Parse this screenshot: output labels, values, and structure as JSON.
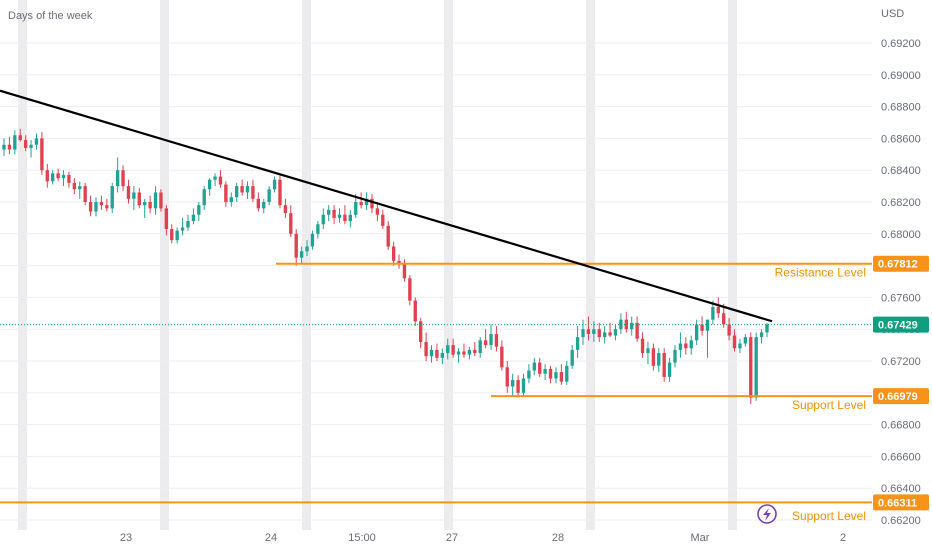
{
  "header": {
    "label": "Days of the week"
  },
  "currency": "USD",
  "colors": {
    "up": "#22a294",
    "down": "#e1404f",
    "trendline": "#000000",
    "level": "#f7931a",
    "grid": "#eceef2",
    "session_band": "#ececef",
    "current_price_badge": "#0d9f7e",
    "level_badge": "#f7931a",
    "ai_icon": "#7b3fbf"
  },
  "icons": {
    "bolt": "lightning-bolt-icon"
  },
  "chart_data": {
    "type": "candlestick",
    "title": "",
    "xlabel": "",
    "ylabel": "",
    "currency": "USD",
    "ylim": [
      0.662,
      0.6935
    ],
    "y_ticks": [
      "0.69200",
      "0.69000",
      "0.68800",
      "0.68600",
      "0.68400",
      "0.68200",
      "0.68000",
      "0.67800",
      "0.67600",
      "0.67400",
      "0.67200",
      "0.67000",
      "0.66800",
      "0.66600",
      "0.66400",
      "0.66200"
    ],
    "x_ticks": [
      "23",
      "24",
      "15:00",
      "27",
      "28",
      "Mar",
      "2"
    ],
    "grid": true,
    "current_price": "0.67429",
    "levels": [
      {
        "label": "Resistance Level",
        "value": "0.67812"
      },
      {
        "label": "Support Level",
        "value": "0.66979"
      },
      {
        "label": "Support Level",
        "value": "0.66311"
      }
    ],
    "trendline": {
      "from": 0.689,
      "to": 0.6745
    },
    "candles": [
      [
        0.6853,
        0.686,
        0.6849,
        0.6856
      ],
      [
        0.6856,
        0.6861,
        0.685,
        0.6853
      ],
      [
        0.6853,
        0.6865,
        0.685,
        0.6862
      ],
      [
        0.6862,
        0.6866,
        0.6858,
        0.6859
      ],
      [
        0.6859,
        0.6862,
        0.6852,
        0.6854
      ],
      [
        0.6854,
        0.6859,
        0.6848,
        0.6856
      ],
      [
        0.6856,
        0.6863,
        0.6853,
        0.686
      ],
      [
        0.686,
        0.6864,
        0.6837,
        0.684
      ],
      [
        0.684,
        0.6844,
        0.6829,
        0.6833
      ],
      [
        0.6833,
        0.684,
        0.6831,
        0.6838
      ],
      [
        0.6838,
        0.6841,
        0.6833,
        0.6835
      ],
      [
        0.6835,
        0.684,
        0.683,
        0.6837
      ],
      [
        0.6837,
        0.6839,
        0.6829,
        0.6832
      ],
      [
        0.6832,
        0.6835,
        0.6825,
        0.6828
      ],
      [
        0.6828,
        0.6833,
        0.6822,
        0.683
      ],
      [
        0.683,
        0.6832,
        0.6818,
        0.682
      ],
      [
        0.682,
        0.6824,
        0.6811,
        0.6814
      ],
      [
        0.6814,
        0.6823,
        0.6811,
        0.682
      ],
      [
        0.682,
        0.6824,
        0.6815,
        0.6818
      ],
      [
        0.6818,
        0.6822,
        0.6814,
        0.6816
      ],
      [
        0.6816,
        0.6832,
        0.6813,
        0.683
      ],
      [
        0.683,
        0.6848,
        0.6826,
        0.684
      ],
      [
        0.684,
        0.6843,
        0.6827,
        0.683
      ],
      [
        0.683,
        0.6834,
        0.6819,
        0.6822
      ],
      [
        0.6822,
        0.683,
        0.6815,
        0.6826
      ],
      [
        0.6826,
        0.6829,
        0.6816,
        0.6818
      ],
      [
        0.6818,
        0.6822,
        0.681,
        0.682
      ],
      [
        0.682,
        0.6824,
        0.6813,
        0.6816
      ],
      [
        0.6816,
        0.683,
        0.6812,
        0.6826
      ],
      [
        0.6826,
        0.6828,
        0.6814,
        0.6816
      ],
      [
        0.6816,
        0.6818,
        0.6799,
        0.6803
      ],
      [
        0.6803,
        0.6806,
        0.6794,
        0.6796
      ],
      [
        0.6796,
        0.6804,
        0.6794,
        0.6802
      ],
      [
        0.6802,
        0.681,
        0.6799,
        0.6804
      ],
      [
        0.6804,
        0.6812,
        0.6802,
        0.6808
      ],
      [
        0.6808,
        0.6816,
        0.6806,
        0.6812
      ],
      [
        0.6812,
        0.682,
        0.6808,
        0.6818
      ],
      [
        0.6818,
        0.683,
        0.6815,
        0.6828
      ],
      [
        0.6828,
        0.6835,
        0.6824,
        0.6834
      ],
      [
        0.6834,
        0.6838,
        0.683,
        0.6836
      ],
      [
        0.6836,
        0.684,
        0.6829,
        0.6831
      ],
      [
        0.6831,
        0.6833,
        0.6817,
        0.682
      ],
      [
        0.682,
        0.6826,
        0.6817,
        0.6823
      ],
      [
        0.6823,
        0.6832,
        0.682,
        0.683
      ],
      [
        0.683,
        0.6834,
        0.6824,
        0.6826
      ],
      [
        0.6826,
        0.6833,
        0.6822,
        0.683
      ],
      [
        0.683,
        0.6834,
        0.682,
        0.6822
      ],
      [
        0.6822,
        0.6826,
        0.6814,
        0.6816
      ],
      [
        0.6816,
        0.6822,
        0.6813,
        0.682
      ],
      [
        0.682,
        0.683,
        0.6818,
        0.6828
      ],
      [
        0.6828,
        0.6836,
        0.6826,
        0.6834
      ],
      [
        0.6834,
        0.6838,
        0.6816,
        0.6818
      ],
      [
        0.6818,
        0.6822,
        0.681,
        0.6813
      ],
      [
        0.6813,
        0.6818,
        0.6798,
        0.68
      ],
      [
        0.68,
        0.6803,
        0.678,
        0.6785
      ],
      [
        0.6785,
        0.6792,
        0.6781,
        0.6789
      ],
      [
        0.6789,
        0.6796,
        0.6786,
        0.6792
      ],
      [
        0.6792,
        0.6802,
        0.679,
        0.68
      ],
      [
        0.68,
        0.6808,
        0.6797,
        0.6806
      ],
      [
        0.6806,
        0.6816,
        0.6803,
        0.6812
      ],
      [
        0.6812,
        0.6818,
        0.6808,
        0.6815
      ],
      [
        0.6815,
        0.6818,
        0.6806,
        0.681
      ],
      [
        0.681,
        0.6816,
        0.6807,
        0.6812
      ],
      [
        0.6812,
        0.6818,
        0.6806,
        0.6808
      ],
      [
        0.6808,
        0.6815,
        0.6804,
        0.6812
      ],
      [
        0.6812,
        0.6825,
        0.681,
        0.682
      ],
      [
        0.682,
        0.6826,
        0.6816,
        0.6818
      ],
      [
        0.6818,
        0.6826,
        0.6815,
        0.6822
      ],
      [
        0.6822,
        0.6825,
        0.6813,
        0.6816
      ],
      [
        0.6816,
        0.682,
        0.6808,
        0.6812
      ],
      [
        0.6812,
        0.6815,
        0.6803,
        0.6805
      ],
      [
        0.6805,
        0.6808,
        0.679,
        0.6792
      ],
      [
        0.6792,
        0.6795,
        0.678,
        0.6783
      ],
      [
        0.6783,
        0.6787,
        0.6778,
        0.6781
      ],
      [
        0.6781,
        0.6784,
        0.677,
        0.6772
      ],
      [
        0.6772,
        0.6774,
        0.6755,
        0.6758
      ],
      [
        0.6758,
        0.676,
        0.6742,
        0.6745
      ],
      [
        0.6745,
        0.6747,
        0.6728,
        0.6732
      ],
      [
        0.6732,
        0.6738,
        0.672,
        0.6723
      ],
      [
        0.6723,
        0.673,
        0.6719,
        0.6727
      ],
      [
        0.6727,
        0.6731,
        0.672,
        0.6722
      ],
      [
        0.6722,
        0.6728,
        0.6718,
        0.6725
      ],
      [
        0.6725,
        0.6734,
        0.6721,
        0.673
      ],
      [
        0.673,
        0.6734,
        0.6722,
        0.6724
      ],
      [
        0.6724,
        0.6728,
        0.6719,
        0.6726
      ],
      [
        0.6726,
        0.6731,
        0.6722,
        0.6724
      ],
      [
        0.6724,
        0.6729,
        0.6721,
        0.6727
      ],
      [
        0.6727,
        0.6732,
        0.6723,
        0.6725
      ],
      [
        0.6725,
        0.6735,
        0.6722,
        0.6733
      ],
      [
        0.6733,
        0.674,
        0.6728,
        0.673
      ],
      [
        0.673,
        0.6743,
        0.6727,
        0.6737
      ],
      [
        0.6737,
        0.6742,
        0.6726,
        0.6729
      ],
      [
        0.6729,
        0.6733,
        0.6714,
        0.6716
      ],
      [
        0.6716,
        0.672,
        0.67,
        0.6704
      ],
      [
        0.6704,
        0.6712,
        0.6698,
        0.6708
      ],
      [
        0.6708,
        0.6711,
        0.6697,
        0.67
      ],
      [
        0.67,
        0.6712,
        0.6698,
        0.6709
      ],
      [
        0.6709,
        0.6718,
        0.6706,
        0.6714
      ],
      [
        0.6714,
        0.6722,
        0.6711,
        0.6719
      ],
      [
        0.6719,
        0.6722,
        0.671,
        0.6712
      ],
      [
        0.6712,
        0.6718,
        0.6708,
        0.6715
      ],
      [
        0.6715,
        0.6717,
        0.6706,
        0.6709
      ],
      [
        0.6709,
        0.6716,
        0.6706,
        0.6713
      ],
      [
        0.6713,
        0.6718,
        0.6705,
        0.6707
      ],
      [
        0.6707,
        0.672,
        0.6705,
        0.6717
      ],
      [
        0.6717,
        0.673,
        0.6715,
        0.6727
      ],
      [
        0.6727,
        0.6742,
        0.6722,
        0.6735
      ],
      [
        0.6735,
        0.6746,
        0.673,
        0.674
      ],
      [
        0.674,
        0.6748,
        0.6733,
        0.6737
      ],
      [
        0.6737,
        0.6745,
        0.6732,
        0.674
      ],
      [
        0.674,
        0.6744,
        0.6732,
        0.6735
      ],
      [
        0.6735,
        0.6742,
        0.6731,
        0.6738
      ],
      [
        0.6738,
        0.6744,
        0.6735,
        0.6736
      ],
      [
        0.6736,
        0.6743,
        0.6733,
        0.674
      ],
      [
        0.674,
        0.675,
        0.6737,
        0.6746
      ],
      [
        0.6746,
        0.6751,
        0.6738,
        0.674
      ],
      [
        0.674,
        0.6748,
        0.6736,
        0.6744
      ],
      [
        0.6744,
        0.6748,
        0.6732,
        0.6734
      ],
      [
        0.6734,
        0.6738,
        0.6722,
        0.6725
      ],
      [
        0.6725,
        0.6732,
        0.6718,
        0.6728
      ],
      [
        0.6728,
        0.6731,
        0.6714,
        0.6717
      ],
      [
        0.6717,
        0.6728,
        0.6713,
        0.6725
      ],
      [
        0.6725,
        0.6728,
        0.6707,
        0.671
      ],
      [
        0.671,
        0.6722,
        0.6707,
        0.6719
      ],
      [
        0.6719,
        0.673,
        0.6716,
        0.6727
      ],
      [
        0.6727,
        0.6738,
        0.6722,
        0.6731
      ],
      [
        0.6731,
        0.6735,
        0.6724,
        0.6728
      ],
      [
        0.6728,
        0.6736,
        0.6724,
        0.6733
      ],
      [
        0.6733,
        0.6746,
        0.673,
        0.6743
      ],
      [
        0.6743,
        0.6748,
        0.6736,
        0.6739
      ],
      [
        0.6739,
        0.6746,
        0.6722,
        0.6746
      ],
      [
        0.6746,
        0.6758,
        0.6743,
        0.6754
      ],
      [
        0.6754,
        0.676,
        0.6747,
        0.675
      ],
      [
        0.675,
        0.6756,
        0.6741,
        0.6743
      ],
      [
        0.6743,
        0.6747,
        0.6733,
        0.6736
      ],
      [
        0.6736,
        0.674,
        0.6726,
        0.6728
      ],
      [
        0.6728,
        0.6734,
        0.6725,
        0.6731
      ],
      [
        0.6731,
        0.6737,
        0.6729,
        0.6735
      ],
      [
        0.6735,
        0.6738,
        0.6693,
        0.6697
      ],
      [
        0.6697,
        0.6738,
        0.6695,
        0.6735
      ],
      [
        0.6735,
        0.674,
        0.6731,
        0.6738
      ],
      [
        0.6738,
        0.6744,
        0.6735,
        0.6743
      ]
    ]
  }
}
